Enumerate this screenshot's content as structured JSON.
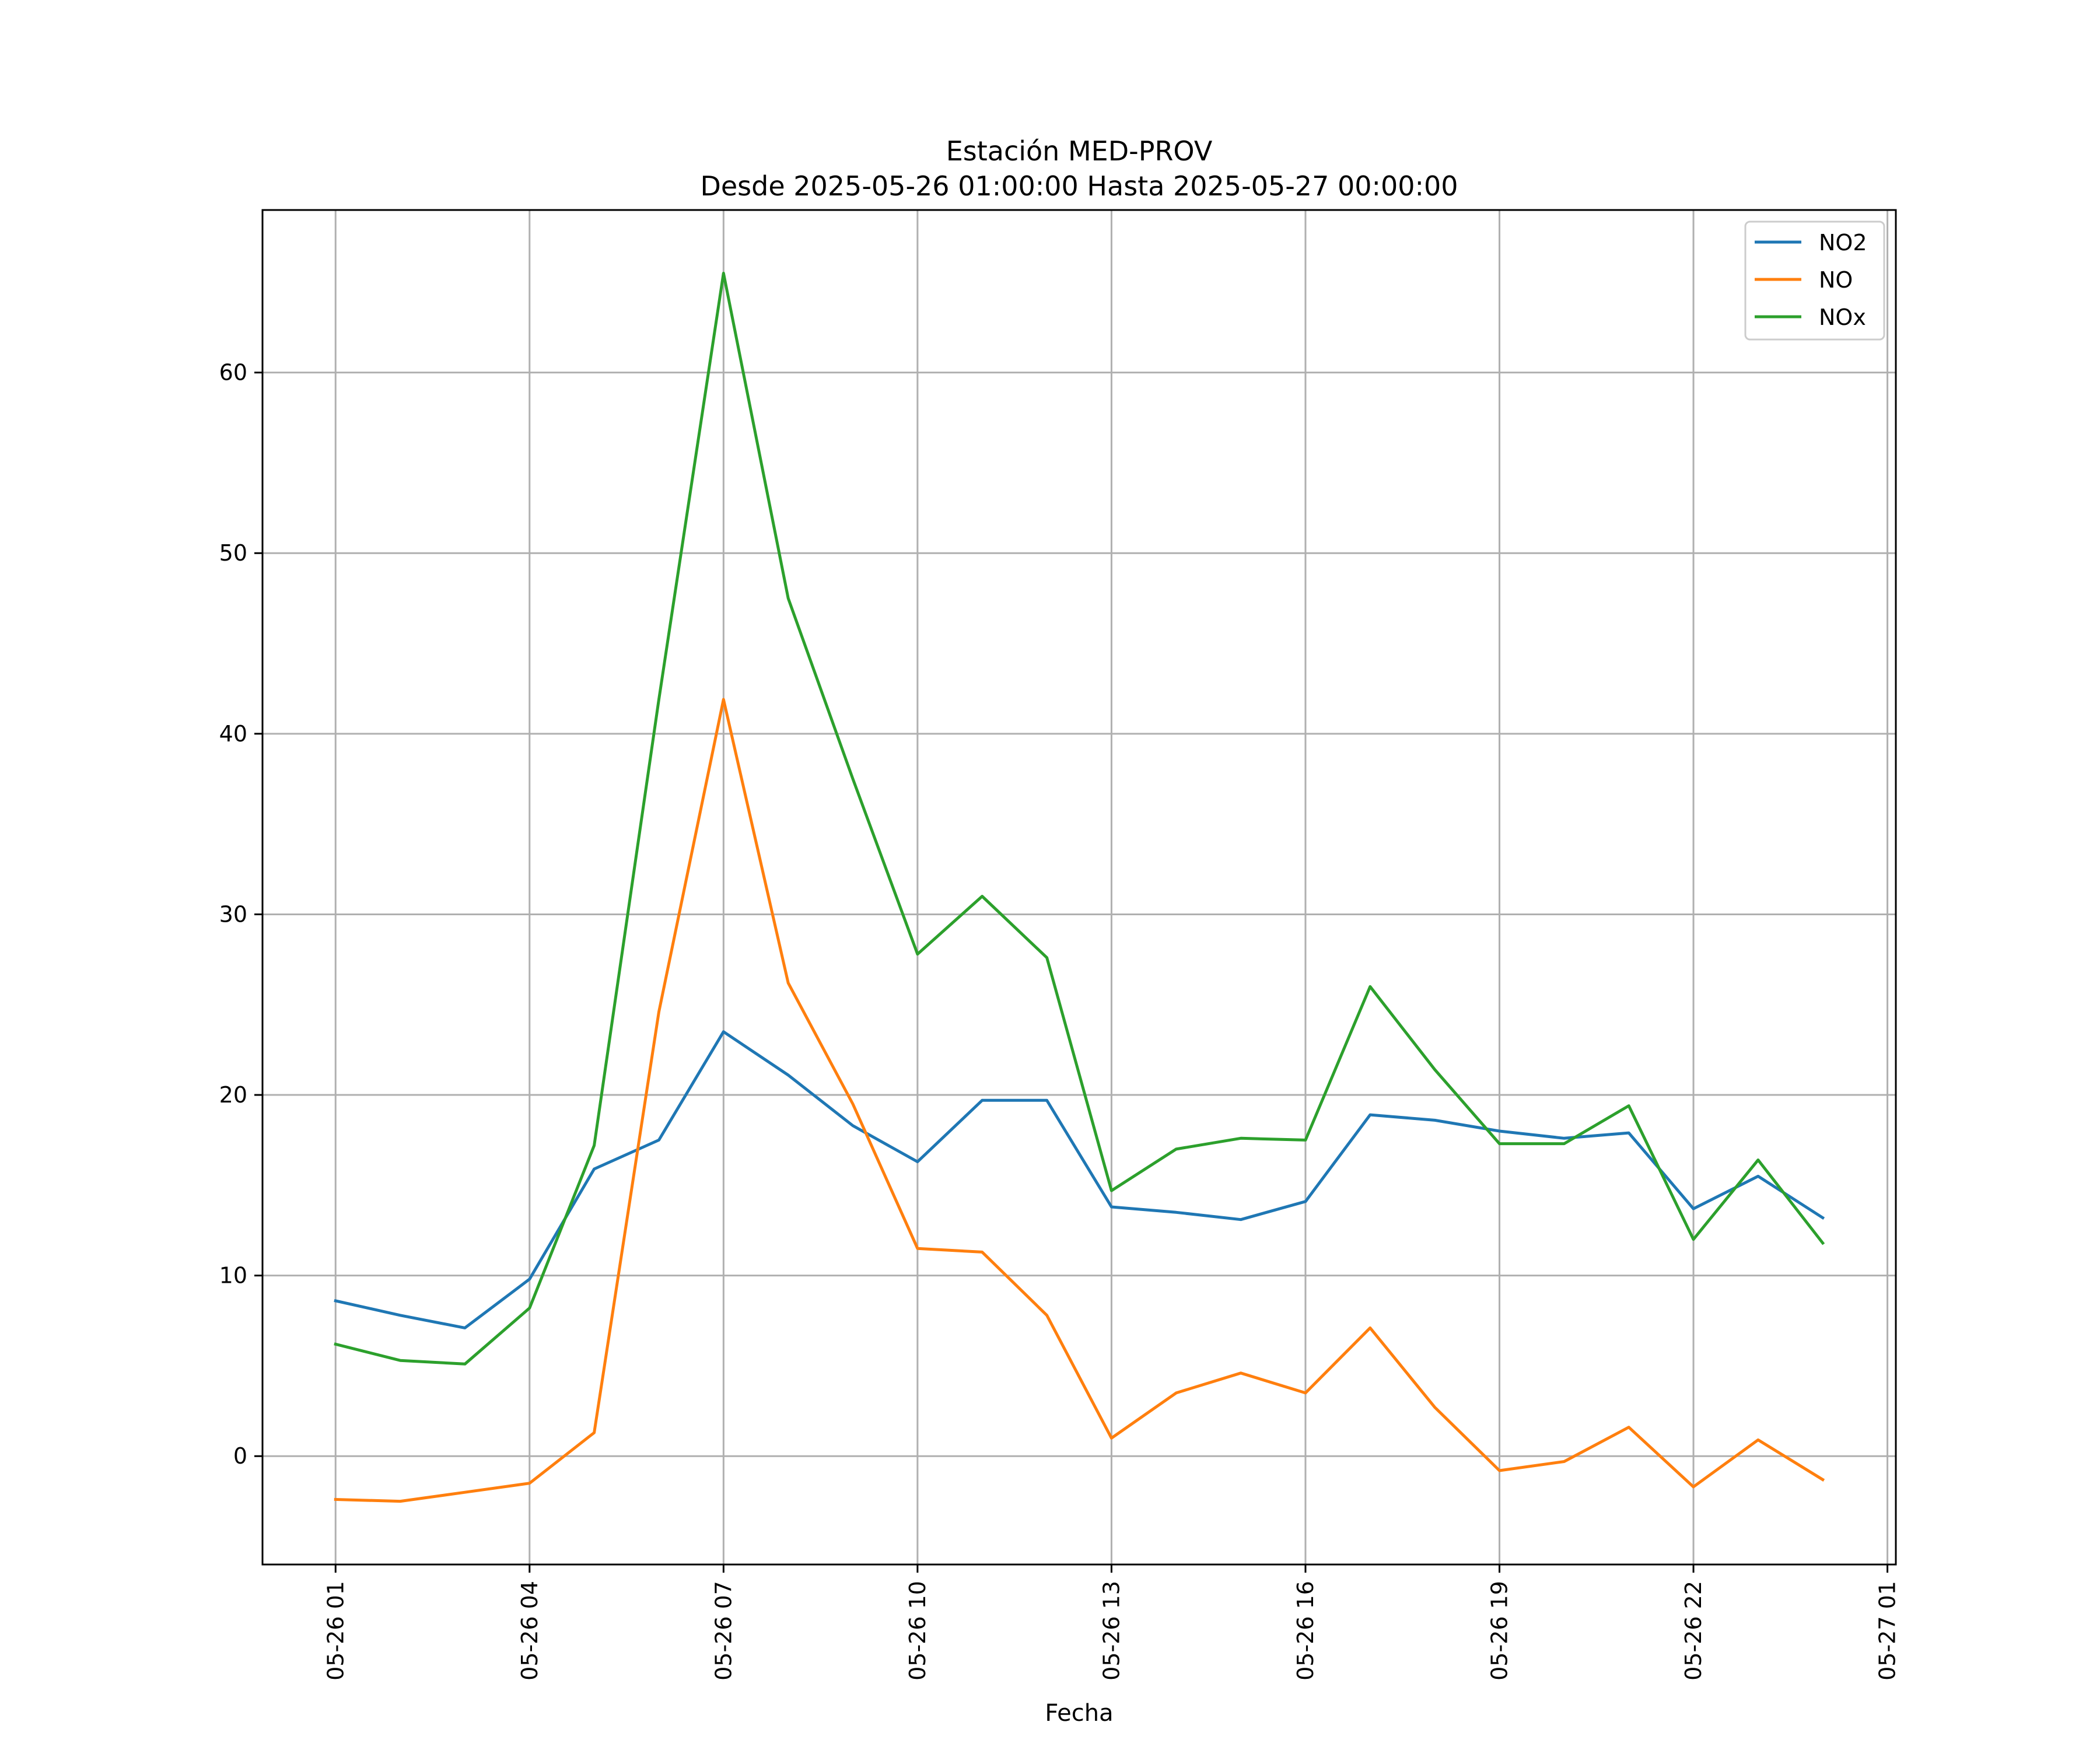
{
  "chart_data": {
    "type": "line",
    "title": "Estación MED-PROV",
    "subtitle": "Desde 2025-05-26 01:00:00 Hasta 2025-05-27 00:00:00",
    "xlabel": "Fecha",
    "ylabel": "",
    "x": [
      "05-26 01",
      "05-26 02",
      "05-26 03",
      "05-26 04",
      "05-26 05",
      "05-26 06",
      "05-26 07",
      "05-26 08",
      "05-26 09",
      "05-26 10",
      "05-26 11",
      "05-26 12",
      "05-26 13",
      "05-26 14",
      "05-26 15",
      "05-26 16",
      "05-26 17",
      "05-26 18",
      "05-26 19",
      "05-26 20",
      "05-26 21",
      "05-26 22",
      "05-26 23",
      "05-27 00"
    ],
    "x_tick_labels": [
      "05-26 01",
      "05-26 04",
      "05-26 07",
      "05-26 10",
      "05-26 13",
      "05-26 16",
      "05-26 19",
      "05-26 22",
      "05-27 01"
    ],
    "y_ticks": [
      0,
      10,
      20,
      30,
      40,
      50,
      60
    ],
    "ylim": [
      -6,
      69
    ],
    "xlim_hours": [
      -1.13,
      24.13
    ],
    "grid": true,
    "legend_position": "top-right",
    "series": [
      {
        "name": "NO2",
        "color": "#1f77b4",
        "values": [
          8.6,
          7.8,
          7.1,
          9.8,
          15.9,
          17.5,
          23.5,
          21.1,
          18.3,
          16.3,
          19.7,
          19.7,
          13.8,
          13.5,
          13.1,
          14.1,
          18.9,
          18.6,
          18.0,
          17.6,
          17.9,
          13.7,
          15.5,
          13.2
        ]
      },
      {
        "name": "NO",
        "color": "#ff7f0e",
        "values": [
          -2.4,
          -2.5,
          -2.0,
          -1.5,
          1.3,
          24.6,
          41.9,
          26.2,
          19.5,
          11.5,
          11.3,
          7.8,
          1.0,
          3.5,
          4.6,
          3.5,
          7.1,
          2.7,
          -0.8,
          -0.3,
          1.6,
          -1.7,
          0.9,
          -1.3
        ]
      },
      {
        "name": "NOx",
        "color": "#2ca02c",
        "values": [
          6.2,
          5.3,
          5.1,
          8.2,
          17.2,
          41.9,
          65.5,
          47.5,
          37.5,
          27.8,
          31.0,
          27.6,
          14.7,
          17.0,
          17.6,
          17.5,
          26.0,
          21.4,
          17.3,
          17.3,
          19.4,
          12.0,
          16.4,
          11.8
        ]
      }
    ]
  }
}
